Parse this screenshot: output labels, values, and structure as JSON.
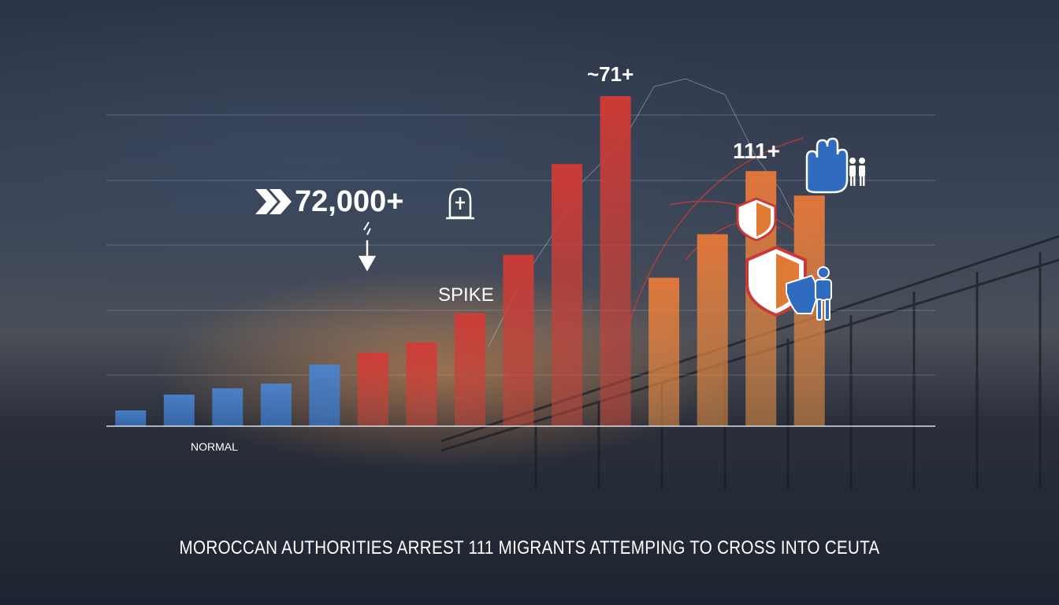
{
  "chart_data": {
    "type": "bar",
    "title": "MOROCCAN AUTHORITIES ARREST 111 MIGRANTS ATTEMPING TO CROSS INTO CEUTA",
    "values": [
      20,
      40,
      48,
      54,
      78,
      93,
      106,
      143,
      217,
      332,
      418,
      188,
      243,
      323,
      292
    ],
    "series_colors": [
      "#3a73c4",
      "#3a73c4",
      "#3a73c4",
      "#3a73c4",
      "#3a73c4",
      "#c83a36",
      "#c83a36",
      "#c83a36",
      "#c83a36",
      "#c83a36",
      "#c83a36",
      "#e07a35",
      "#e07a35",
      "#e07a35",
      "#e07a35"
    ],
    "ylim": [
      0,
      430
    ],
    "grid": true,
    "annotations": {
      "big_number": "72,000+",
      "top_label": "~71+",
      "count_label": "111+",
      "spike_label": "SPIKE",
      "normal_label": "NORMAL"
    },
    "icons": [
      "double-chevron-icon",
      "tombstone-icon",
      "down-arrow-icon",
      "shield-icon",
      "raised-hand-icon",
      "people-icon",
      "person-icon"
    ]
  }
}
